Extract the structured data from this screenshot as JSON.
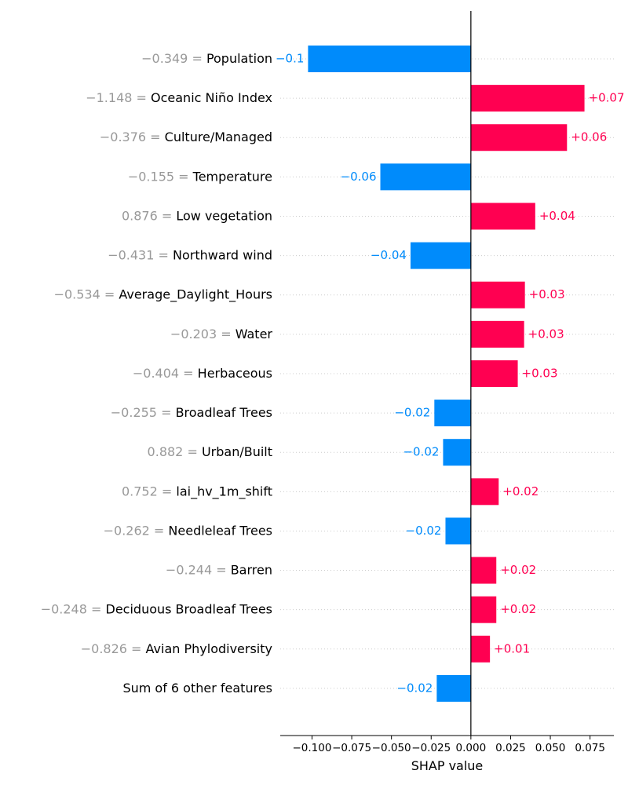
{
  "chart_data": {
    "type": "bar",
    "orientation": "horizontal",
    "xlabel": "SHAP value",
    "xlim": [
      -0.12,
      0.09
    ],
    "xticks": [
      -0.1,
      -0.075,
      -0.05,
      -0.025,
      0.0,
      0.025,
      0.05,
      0.075
    ],
    "xtick_labels": [
      "−0.100",
      "−0.075",
      "−0.050",
      "−0.025",
      "0.000",
      "0.025",
      "0.050",
      "0.075"
    ],
    "grid": false,
    "colors": {
      "positive": "#ff0051",
      "negative": "#008bfb",
      "feature_value": "#999999"
    },
    "features": [
      {
        "name": "Population",
        "feature_value": "−0.349",
        "shap": -0.1025,
        "label": "−0.1"
      },
      {
        "name": "Oceanic Niño Index",
        "feature_value": "−1.148",
        "shap": 0.0715,
        "label": "+0.07"
      },
      {
        "name": "Culture/Managed",
        "feature_value": "−0.376",
        "shap": 0.0605,
        "label": "+0.06"
      },
      {
        "name": "Temperature",
        "feature_value": "−0.155",
        "shap": -0.057,
        "label": "−0.06"
      },
      {
        "name": "Low vegetation",
        "feature_value": "0.876",
        "shap": 0.0405,
        "label": "+0.04"
      },
      {
        "name": "Northward wind",
        "feature_value": "−0.431",
        "shap": -0.038,
        "label": "−0.04"
      },
      {
        "name": "Average_Daylight_Hours",
        "feature_value": "−0.534",
        "shap": 0.034,
        "label": "+0.03"
      },
      {
        "name": "Water",
        "feature_value": "−0.203",
        "shap": 0.0335,
        "label": "+0.03"
      },
      {
        "name": "Herbaceous",
        "feature_value": "−0.404",
        "shap": 0.0295,
        "label": "+0.03"
      },
      {
        "name": "Broadleaf Trees",
        "feature_value": "−0.255",
        "shap": -0.023,
        "label": "−0.02"
      },
      {
        "name": "Urban/Built",
        "feature_value": "0.882",
        "shap": -0.0175,
        "label": "−0.02"
      },
      {
        "name": "lai_hv_1m_shift",
        "feature_value": "0.752",
        "shap": 0.0175,
        "label": "+0.02"
      },
      {
        "name": "Needleleaf Trees",
        "feature_value": "−0.262",
        "shap": -0.016,
        "label": "−0.02"
      },
      {
        "name": "Barren",
        "feature_value": "−0.244",
        "shap": 0.016,
        "label": "+0.02"
      },
      {
        "name": "Deciduous Broadleaf Trees",
        "feature_value": "−0.248",
        "shap": 0.016,
        "label": "+0.02"
      },
      {
        "name": "Avian Phylodiversity",
        "feature_value": "−0.826",
        "shap": 0.012,
        "label": "+0.01"
      },
      {
        "name": "Sum of 6 other features",
        "feature_value": "",
        "shap": -0.0215,
        "label": "−0.02"
      }
    ]
  }
}
